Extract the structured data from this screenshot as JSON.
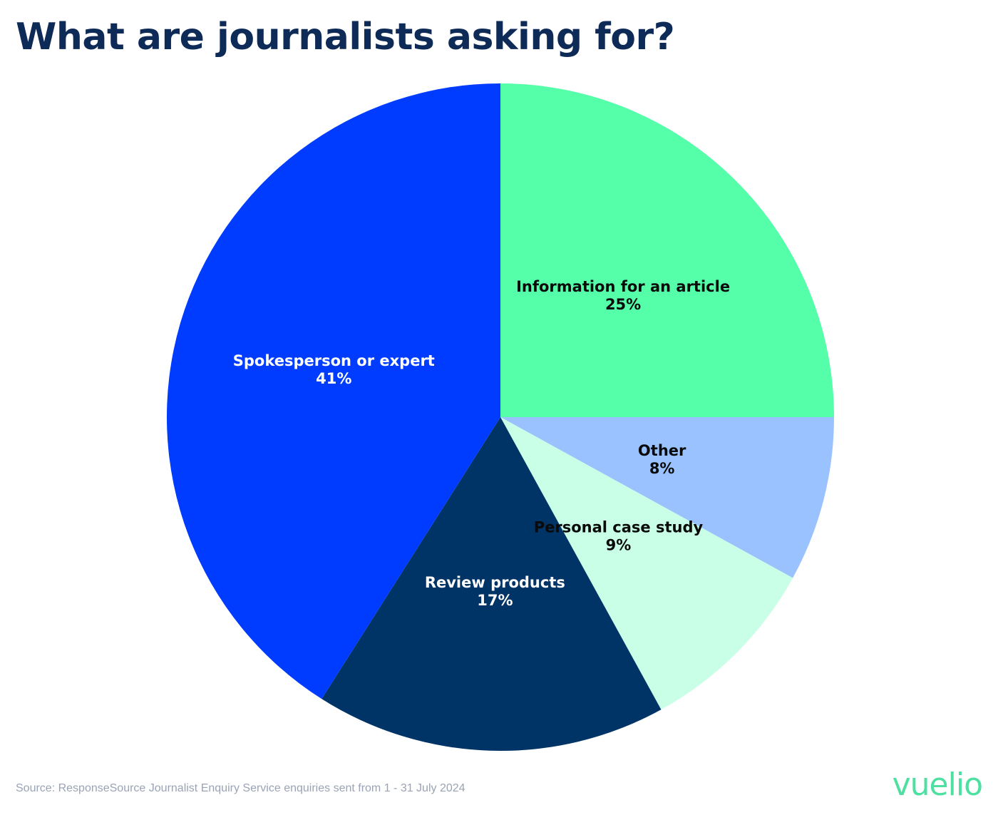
{
  "title": "What are journalists asking for?",
  "source_note": "Source: ResponseSource Journalist Enquiry Service enquiries sent from 1 - 31 July 2024",
  "logo_text": "vuelio",
  "chart_data": {
    "type": "pie",
    "title": "What are journalists asking for?",
    "start_angle_deg": 0,
    "direction": "clockwise",
    "slices": [
      {
        "label": "Information for an article",
        "value": 25,
        "display": "25%",
        "color": "#55ffaa",
        "text_color": "#0a0a0a"
      },
      {
        "label": "Other",
        "value": 8,
        "display": "8%",
        "color": "#99c2ff",
        "text_color": "#0a0a0a"
      },
      {
        "label": "Personal case study",
        "value": 9,
        "display": "9%",
        "color": "#c8ffe6",
        "text_color": "#0a0a0a"
      },
      {
        "label": "Review products",
        "value": 17,
        "display": "17%",
        "color": "#003366",
        "text_color": "#ffffff"
      },
      {
        "label": "Spokesperson or expert",
        "value": 41,
        "display": "41%",
        "color": "#003cff",
        "text_color": "#ffffff"
      }
    ]
  }
}
